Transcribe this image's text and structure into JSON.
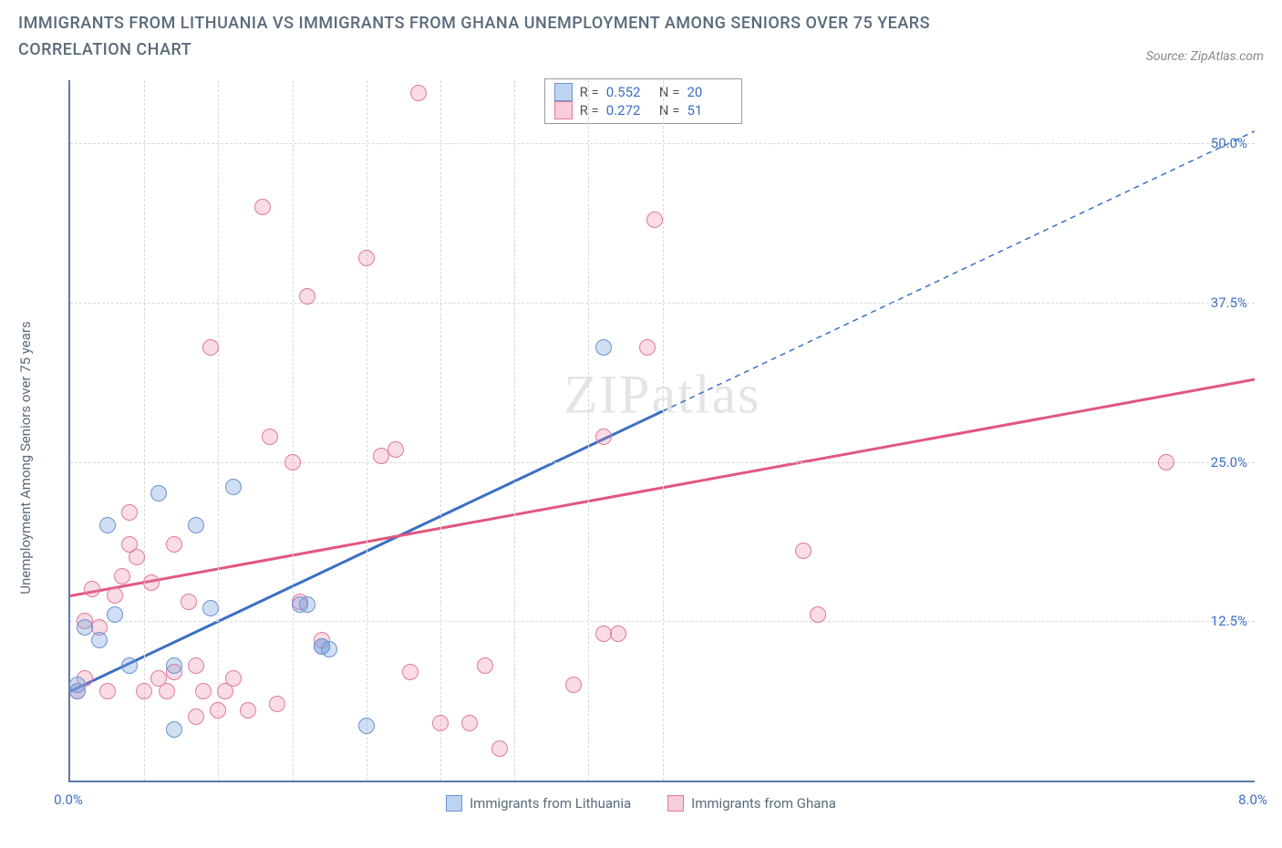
{
  "title": "IMMIGRANTS FROM LITHUANIA VS IMMIGRANTS FROM GHANA UNEMPLOYMENT AMONG SENIORS OVER 75 YEARS CORRELATION CHART",
  "source": "Source: ZipAtlas.com",
  "ylabel": "Unemployment Among Seniors over 75 years",
  "watermark_a": "ZIP",
  "watermark_b": "atlas",
  "chart": {
    "type": "scatter",
    "xlim": [
      0,
      8
    ],
    "ylim": [
      0,
      55
    ],
    "x_ticks": [
      0,
      8
    ],
    "x_tick_labels": [
      "0.0%",
      "8.0%"
    ],
    "y_ticks": [
      12.5,
      25,
      37.5,
      50
    ],
    "y_tick_labels": [
      "12.5%",
      "25.0%",
      "37.5%",
      "50.0%"
    ],
    "x_minor_ticks": [
      0.5,
      1,
      1.5,
      2,
      2.5,
      3,
      3.5,
      4
    ],
    "background_color": "#ffffff",
    "grid_color": "#d8d8d8",
    "axis_color": "#5a7aa8",
    "series": [
      {
        "name": "Immigrants from Lithuania",
        "color_fill": "rgba(120,160,220,0.35)",
        "color_stroke": "#6a94d0",
        "swatch_fill": "#bdd4f0",
        "swatch_border": "#6a94d0",
        "marker_radius": 9,
        "R": "0.552",
        "N": "20",
        "trend": {
          "x1": 0,
          "y1": 7,
          "x2": 8,
          "y2": 51,
          "solid_until_x": 4.0,
          "color": "#3b6fc4",
          "width": 3
        },
        "points": [
          [
            0.05,
            7
          ],
          [
            0.05,
            7.5
          ],
          [
            0.1,
            12
          ],
          [
            0.2,
            11
          ],
          [
            0.25,
            20
          ],
          [
            0.3,
            13
          ],
          [
            0.4,
            9
          ],
          [
            0.6,
            22.5
          ],
          [
            0.7,
            9
          ],
          [
            0.7,
            4
          ],
          [
            0.85,
            20
          ],
          [
            0.95,
            13.5
          ],
          [
            1.1,
            23
          ],
          [
            1.55,
            13.8
          ],
          [
            1.6,
            13.8
          ],
          [
            1.7,
            10.5
          ],
          [
            1.7,
            10.5
          ],
          [
            1.75,
            10.3
          ],
          [
            2.0,
            4.3
          ],
          [
            3.6,
            34
          ]
        ]
      },
      {
        "name": "Immigrants from Ghana",
        "color_fill": "rgba(235,130,160,0.28)",
        "color_stroke": "#e07a9a",
        "swatch_fill": "#f6cdd9",
        "swatch_border": "#e07a9a",
        "marker_radius": 9,
        "R": "0.272",
        "N": "51",
        "trend": {
          "x1": 0,
          "y1": 14.5,
          "x2": 8,
          "y2": 31.5,
          "solid_until_x": 8,
          "color": "#e1577e",
          "width": 3
        },
        "points": [
          [
            0.05,
            7
          ],
          [
            0.1,
            8
          ],
          [
            0.1,
            12.5
          ],
          [
            0.15,
            15
          ],
          [
            0.2,
            12
          ],
          [
            0.25,
            7
          ],
          [
            0.3,
            14.5
          ],
          [
            0.35,
            16
          ],
          [
            0.4,
            18.5
          ],
          [
            0.4,
            21
          ],
          [
            0.45,
            17.5
          ],
          [
            0.5,
            7
          ],
          [
            0.55,
            15.5
          ],
          [
            0.6,
            8
          ],
          [
            0.65,
            7
          ],
          [
            0.7,
            18.5
          ],
          [
            0.7,
            8.5
          ],
          [
            0.8,
            14
          ],
          [
            0.85,
            5
          ],
          [
            0.85,
            9
          ],
          [
            0.9,
            7
          ],
          [
            0.95,
            34
          ],
          [
            1.0,
            5.5
          ],
          [
            1.05,
            7
          ],
          [
            1.1,
            8
          ],
          [
            1.2,
            5.5
          ],
          [
            1.3,
            45
          ],
          [
            1.35,
            27
          ],
          [
            1.4,
            6
          ],
          [
            1.5,
            25
          ],
          [
            1.55,
            14
          ],
          [
            1.6,
            38
          ],
          [
            1.7,
            11
          ],
          [
            2.0,
            41
          ],
          [
            2.1,
            25.5
          ],
          [
            2.2,
            26
          ],
          [
            2.3,
            8.5
          ],
          [
            2.35,
            54
          ],
          [
            2.5,
            4.5
          ],
          [
            2.7,
            4.5
          ],
          [
            2.8,
            9
          ],
          [
            2.9,
            2.5
          ],
          [
            3.4,
            7.5
          ],
          [
            3.6,
            11.5
          ],
          [
            3.7,
            11.5
          ],
          [
            3.6,
            27
          ],
          [
            3.9,
            34
          ],
          [
            3.95,
            44
          ],
          [
            4.95,
            18
          ],
          [
            5.05,
            13
          ],
          [
            7.4,
            25
          ]
        ]
      }
    ],
    "legend_labels": {
      "R": "R =",
      "N": "N ="
    }
  },
  "bottom_legend": [
    {
      "label": "Immigrants from Lithuania",
      "fill": "#bdd4f0",
      "border": "#6a94d0"
    },
    {
      "label": "Immigrants from Ghana",
      "fill": "#f6cdd9",
      "border": "#e07a9a"
    }
  ]
}
